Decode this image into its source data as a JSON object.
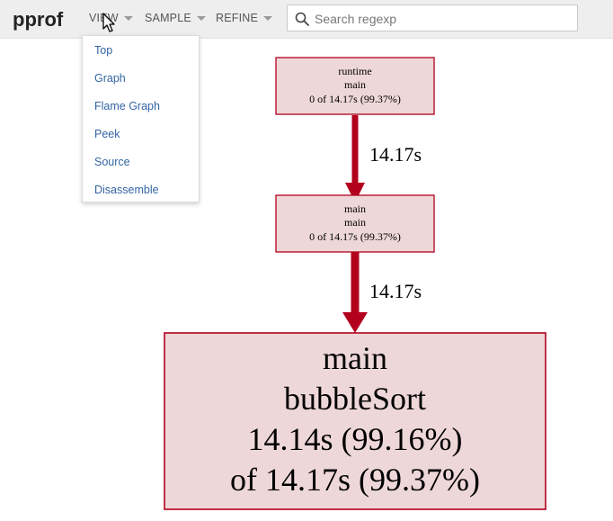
{
  "header": {
    "logo": "pprof",
    "menus": [
      {
        "label": "VIEW"
      },
      {
        "label": "SAMPLE"
      },
      {
        "label": "REFINE"
      }
    ],
    "search": {
      "placeholder": "Search regexp",
      "value": ""
    }
  },
  "view_dropdown": {
    "items": [
      "Top",
      "Graph",
      "Flame Graph",
      "Peek",
      "Source",
      "Disassemble"
    ]
  },
  "graph": {
    "nodes": [
      {
        "lines": [
          "runtime",
          "main",
          "0 of 14.17s (99.37%)"
        ]
      },
      {
        "lines": [
          "main",
          "main",
          "0 of 14.17s (99.37%)"
        ]
      },
      {
        "lines": [
          "main",
          "bubbleSort",
          "14.14s (99.16%)",
          "of 14.17s (99.37%)"
        ]
      }
    ],
    "edges": [
      {
        "label": "14.17s"
      },
      {
        "label": "14.17s"
      }
    ],
    "colors": {
      "node_fill": "#eed7d8",
      "node_stroke": "#b2001d",
      "edge": "#b2001d"
    }
  }
}
